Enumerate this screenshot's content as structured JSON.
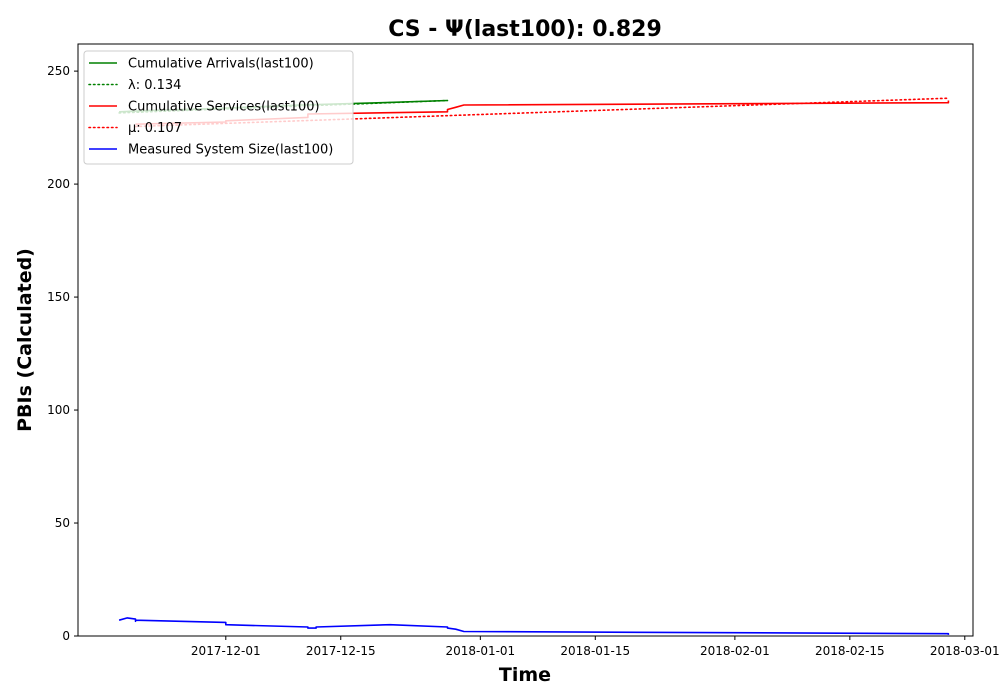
{
  "chart_data": {
    "type": "line",
    "title": "CS -  Ψ(last100): 0.829",
    "xlabel": "Time",
    "ylabel": "PBIs (Calculated)",
    "xlim": [
      "2017-11-13",
      "2018-03-02"
    ],
    "ylim": [
      0,
      262
    ],
    "x_ticks": [
      "2017-12-01",
      "2017-12-15",
      "2018-01-01",
      "2018-01-15",
      "2018-02-01",
      "2018-02-15",
      "2018-03-01"
    ],
    "y_ticks": [
      0,
      50,
      100,
      150,
      200,
      250
    ],
    "grid": false,
    "legend_position": "top-left",
    "series": [
      {
        "name": "Cumulative Arrivals(last100)",
        "color": "#008000",
        "style": "solid",
        "points": [
          {
            "x": "2017-11-18",
            "y": 232
          },
          {
            "x": "2017-11-21",
            "y": 232.5
          },
          {
            "x": "2017-11-30",
            "y": 233.5
          },
          {
            "x": "2017-12-10",
            "y": 235
          },
          {
            "x": "2017-12-20",
            "y": 236
          },
          {
            "x": "2017-12-28",
            "y": 237
          }
        ]
      },
      {
        "name": "λ: 0.134",
        "color": "#008000",
        "style": "dotted",
        "points": [
          {
            "x": "2017-11-18",
            "y": 231.5
          },
          {
            "x": "2017-12-28",
            "y": 237
          }
        ]
      },
      {
        "name": "Cumulative Services(last100)",
        "color": "#ff0000",
        "style": "solid",
        "points": [
          {
            "x": "2017-11-20",
            "y": 226.5
          },
          {
            "x": "2017-12-01",
            "y": 227.5
          },
          {
            "x": "2017-12-01",
            "y": 228
          },
          {
            "x": "2017-12-11",
            "y": 229.5
          },
          {
            "x": "2017-12-11",
            "y": 231
          },
          {
            "x": "2017-12-28",
            "y": 232
          },
          {
            "x": "2017-12-28",
            "y": 233
          },
          {
            "x": "2017-12-29",
            "y": 234
          },
          {
            "x": "2017-12-30",
            "y": 235
          },
          {
            "x": "2018-02-27",
            "y": 236
          },
          {
            "x": "2018-02-27",
            "y": 237
          }
        ]
      },
      {
        "name": "μ: 0.107",
        "color": "#ff0000",
        "style": "dotted",
        "points": [
          {
            "x": "2017-11-20",
            "y": 225.5
          },
          {
            "x": "2018-02-27",
            "y": 238
          }
        ]
      },
      {
        "name": "Measured System Size(last100)",
        "color": "#0000ff",
        "style": "solid",
        "points": [
          {
            "x": "2017-11-18",
            "y": 7
          },
          {
            "x": "2017-11-19",
            "y": 8
          },
          {
            "x": "2017-11-20",
            "y": 7.5
          },
          {
            "x": "2017-11-20",
            "y": 6.5
          },
          {
            "x": "2017-11-20",
            "y": 7
          },
          {
            "x": "2017-12-01",
            "y": 6
          },
          {
            "x": "2017-12-01",
            "y": 5
          },
          {
            "x": "2017-12-11",
            "y": 4
          },
          {
            "x": "2017-12-11",
            "y": 3.5
          },
          {
            "x": "2017-12-12",
            "y": 3.5
          },
          {
            "x": "2017-12-12",
            "y": 4
          },
          {
            "x": "2017-12-21",
            "y": 5
          },
          {
            "x": "2017-12-28",
            "y": 4
          },
          {
            "x": "2017-12-28",
            "y": 3.5
          },
          {
            "x": "2017-12-29",
            "y": 3
          },
          {
            "x": "2017-12-30",
            "y": 2
          },
          {
            "x": "2018-02-27",
            "y": 1
          },
          {
            "x": "2018-02-27",
            "y": 0.5
          }
        ]
      }
    ]
  }
}
